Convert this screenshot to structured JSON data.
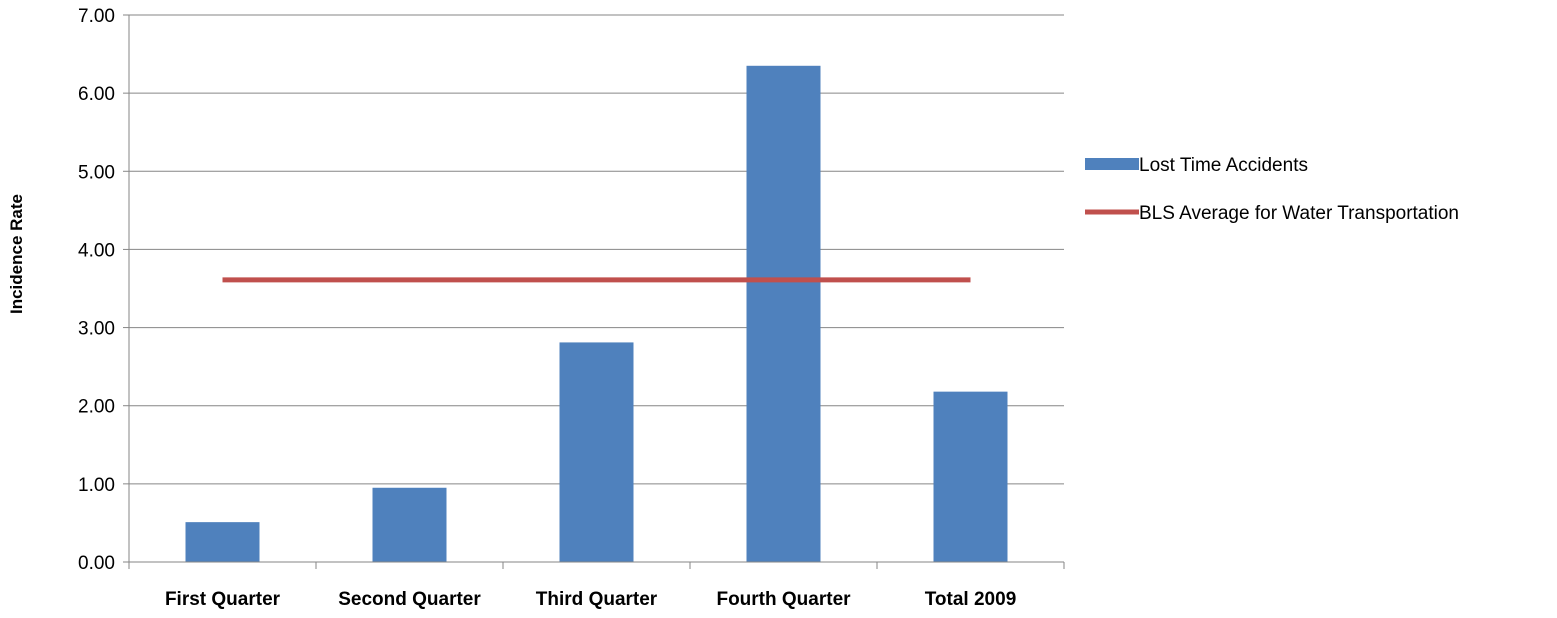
{
  "chart_data": {
    "type": "bar",
    "title": "",
    "xlabel": "",
    "ylabel": "Incidence Rate",
    "ylim": [
      0,
      7
    ],
    "yticks": [
      "0.00",
      "1.00",
      "2.00",
      "3.00",
      "4.00",
      "5.00",
      "6.00",
      "7.00"
    ],
    "categories": [
      "First Quarter",
      "Second Quarter",
      "Third Quarter",
      "Fourth Quarter",
      "Total 2009"
    ],
    "series": [
      {
        "name": "Lost Time Accidents",
        "kind": "bar",
        "color": "#4F81BD",
        "values": [
          0.51,
          0.95,
          2.81,
          6.35,
          2.18
        ]
      },
      {
        "name": "BLS Average for Water Transportation",
        "kind": "line",
        "color": "#C0504D",
        "values": [
          3.61,
          3.61,
          3.61,
          3.61,
          3.61
        ]
      }
    ],
    "grid": true,
    "legend_position": "right"
  }
}
